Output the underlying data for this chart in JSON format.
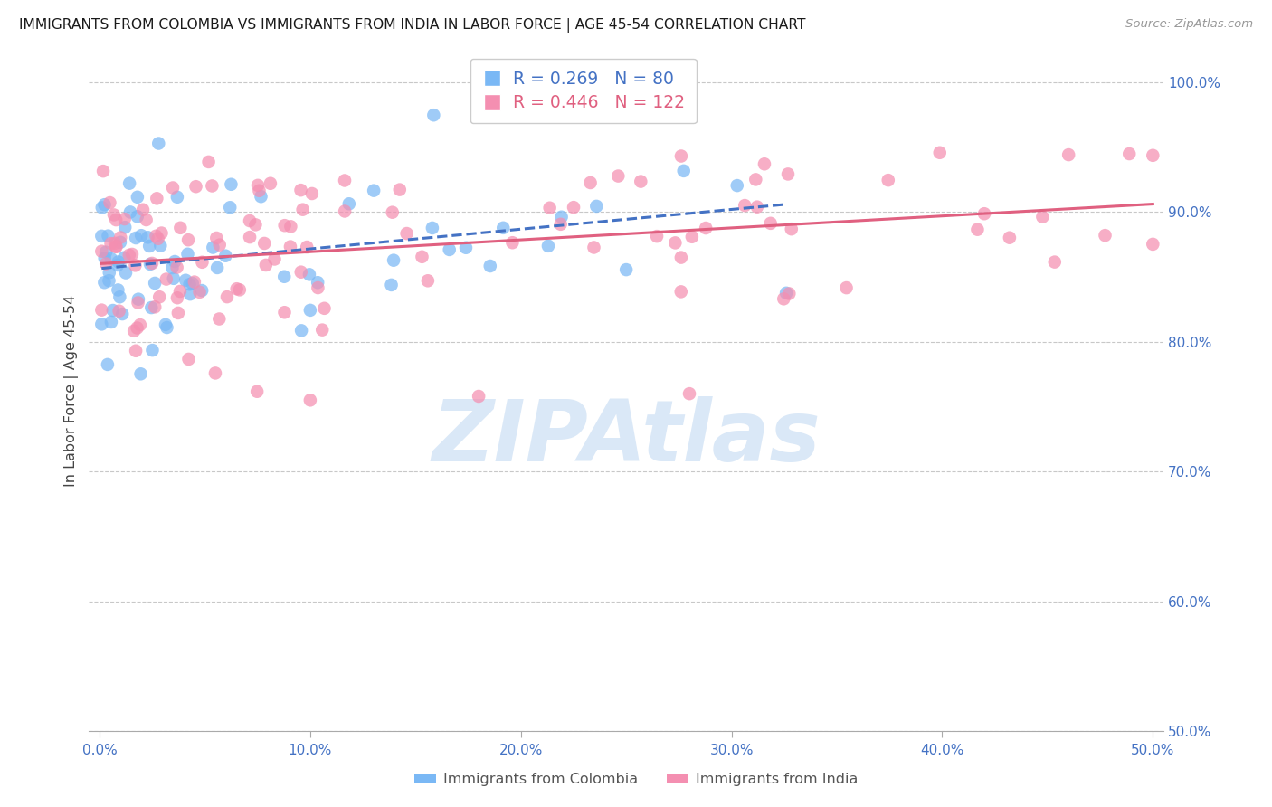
{
  "title": "IMMIGRANTS FROM COLOMBIA VS IMMIGRANTS FROM INDIA IN LABOR FORCE | AGE 45-54 CORRELATION CHART",
  "source": "Source: ZipAtlas.com",
  "ylabel": "In Labor Force | Age 45-54",
  "xlim": [
    -0.005,
    0.505
  ],
  "ylim": [
    0.5,
    1.025
  ],
  "xticks": [
    0.0,
    0.1,
    0.2,
    0.3,
    0.4,
    0.5
  ],
  "xtick_labels": [
    "0.0%",
    "10.0%",
    "20.0%",
    "30.0%",
    "40.0%",
    "50.0%"
  ],
  "yticks_right": [
    0.5,
    0.6,
    0.7,
    0.8,
    0.9,
    1.0
  ],
  "ytick_labels_right": [
    "50.0%",
    "60.0%",
    "70.0%",
    "80.0%",
    "90.0%",
    "100.0%"
  ],
  "colombia_R": 0.269,
  "colombia_N": 80,
  "india_R": 0.446,
  "india_N": 122,
  "colombia_color": "#7ab8f5",
  "india_color": "#f48fb1",
  "colombia_trend_color": "#4472c4",
  "india_trend_color": "#e06080",
  "axis_color": "#4472c4",
  "grid_color": "#c8c8c8",
  "watermark": "ZIPAtlas",
  "watermark_color": "#dae8f7",
  "legend_label_colombia": "Immigrants from Colombia",
  "legend_label_india": "Immigrants from India"
}
